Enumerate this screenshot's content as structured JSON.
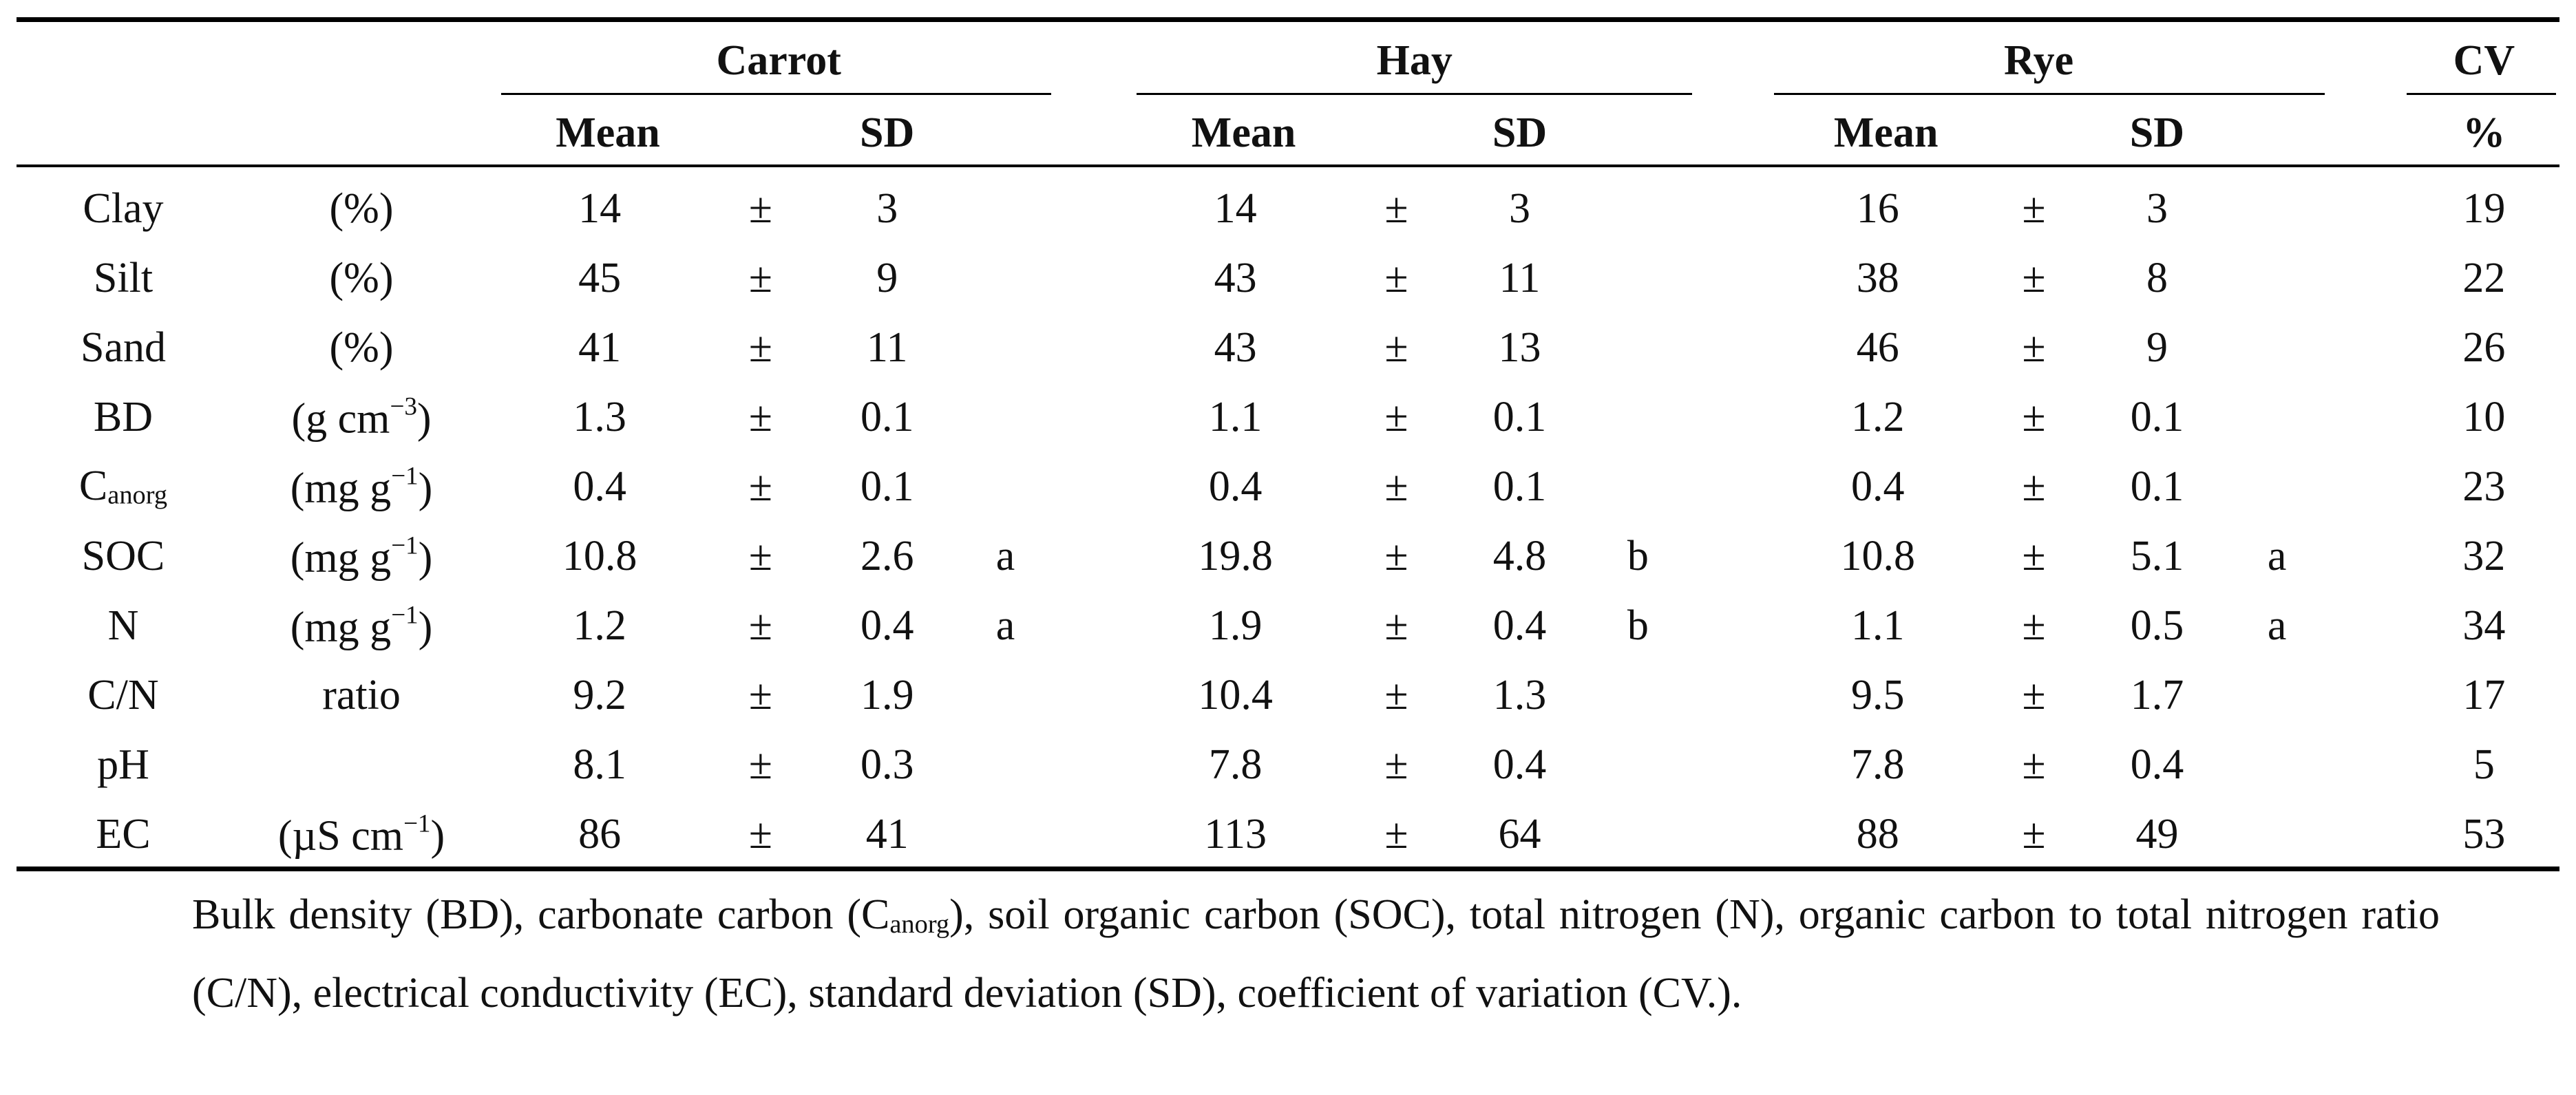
{
  "table": {
    "header": {
      "groups": [
        {
          "name": "Carrot",
          "cols": [
            "Mean",
            "SD"
          ]
        },
        {
          "name": "Hay",
          "cols": [
            "Mean",
            "SD"
          ]
        },
        {
          "name": "Rye",
          "cols": [
            "Mean",
            "SD"
          ]
        }
      ],
      "cv": {
        "name": "CV",
        "unit": "%"
      }
    },
    "pm": "±",
    "rows": [
      {
        "name": "Clay",
        "unit": "(%)",
        "groups": [
          {
            "mean": "14",
            "sd": "3"
          },
          {
            "mean": "14",
            "sd": "3"
          },
          {
            "mean": "16",
            "sd": "3"
          }
        ],
        "cv": "19"
      },
      {
        "name": "Silt",
        "unit": "(%)",
        "groups": [
          {
            "mean": "45",
            "sd": "9"
          },
          {
            "mean": "43",
            "sd": "11"
          },
          {
            "mean": "38",
            "sd": "8"
          }
        ],
        "cv": "22"
      },
      {
        "name": "Sand",
        "unit": "(%)",
        "groups": [
          {
            "mean": "41",
            "sd": "11"
          },
          {
            "mean": "43",
            "sd": "13"
          },
          {
            "mean": "46",
            "sd": "9"
          }
        ],
        "cv": "26"
      },
      {
        "name": "BD",
        "unit": {
          "text": "(g cm",
          "sup": "−3",
          "end": ")"
        },
        "groups": [
          {
            "mean": "1.3",
            "sd": "0.1"
          },
          {
            "mean": "1.1",
            "sd": "0.1"
          },
          {
            "mean": "1.2",
            "sd": "0.1"
          }
        ],
        "cv": "10"
      },
      {
        "name": {
          "text": "C",
          "sub": "anorg"
        },
        "unit": {
          "text": "(mg g",
          "sup": "−1",
          "end": ")"
        },
        "groups": [
          {
            "mean": "0.4",
            "sd": "0.1"
          },
          {
            "mean": "0.4",
            "sd": "0.1"
          },
          {
            "mean": "0.4",
            "sd": "0.1"
          }
        ],
        "cv": "23"
      },
      {
        "name": "SOC",
        "unit": {
          "text": "(mg g",
          "sup": "−1",
          "end": ")"
        },
        "groups": [
          {
            "mean": "10.8",
            "sd": "2.6",
            "sig": "a"
          },
          {
            "mean": "19.8",
            "sd": "4.8",
            "sig": "b"
          },
          {
            "mean": "10.8",
            "sd": "5.1",
            "sig": "a"
          }
        ],
        "cv": "32"
      },
      {
        "name": "N",
        "unit": {
          "text": "(mg g",
          "sup": "−1",
          "end": ")"
        },
        "groups": [
          {
            "mean": "1.2",
            "sd": "0.4",
            "sig": "a"
          },
          {
            "mean": "1.9",
            "sd": "0.4",
            "sig": "b"
          },
          {
            "mean": "1.1",
            "sd": "0.5",
            "sig": "a"
          }
        ],
        "cv": "34"
      },
      {
        "name": "C/N",
        "unit": "ratio",
        "groups": [
          {
            "mean": "9.2",
            "sd": "1.9"
          },
          {
            "mean": "10.4",
            "sd": "1.3"
          },
          {
            "mean": "9.5",
            "sd": "1.7"
          }
        ],
        "cv": "17"
      },
      {
        "name": "pH",
        "groups": [
          {
            "mean": "8.1",
            "sd": "0.3"
          },
          {
            "mean": "7.8",
            "sd": "0.4"
          },
          {
            "mean": "7.8",
            "sd": "0.4"
          }
        ],
        "cv": "5"
      },
      {
        "name": "EC",
        "unit": {
          "text": "(µS cm",
          "sup": "−1",
          "end": ")"
        },
        "groups": [
          {
            "mean": "86",
            "sd": "41"
          },
          {
            "mean": "113",
            "sd": "64"
          },
          {
            "mean": "88",
            "sd": "49"
          }
        ],
        "cv": "53"
      }
    ],
    "caption": {
      "text": "Bulk density (BD), carbonate carbon (C",
      "sub": "anorg",
      "end": "), soil organic carbon (SOC), total nitrogen (N), organic carbon to total nitrogen ratio (C/N), electrical conductivity (EC), standard deviation (SD), coefficient of variation (CV.)."
    }
  }
}
